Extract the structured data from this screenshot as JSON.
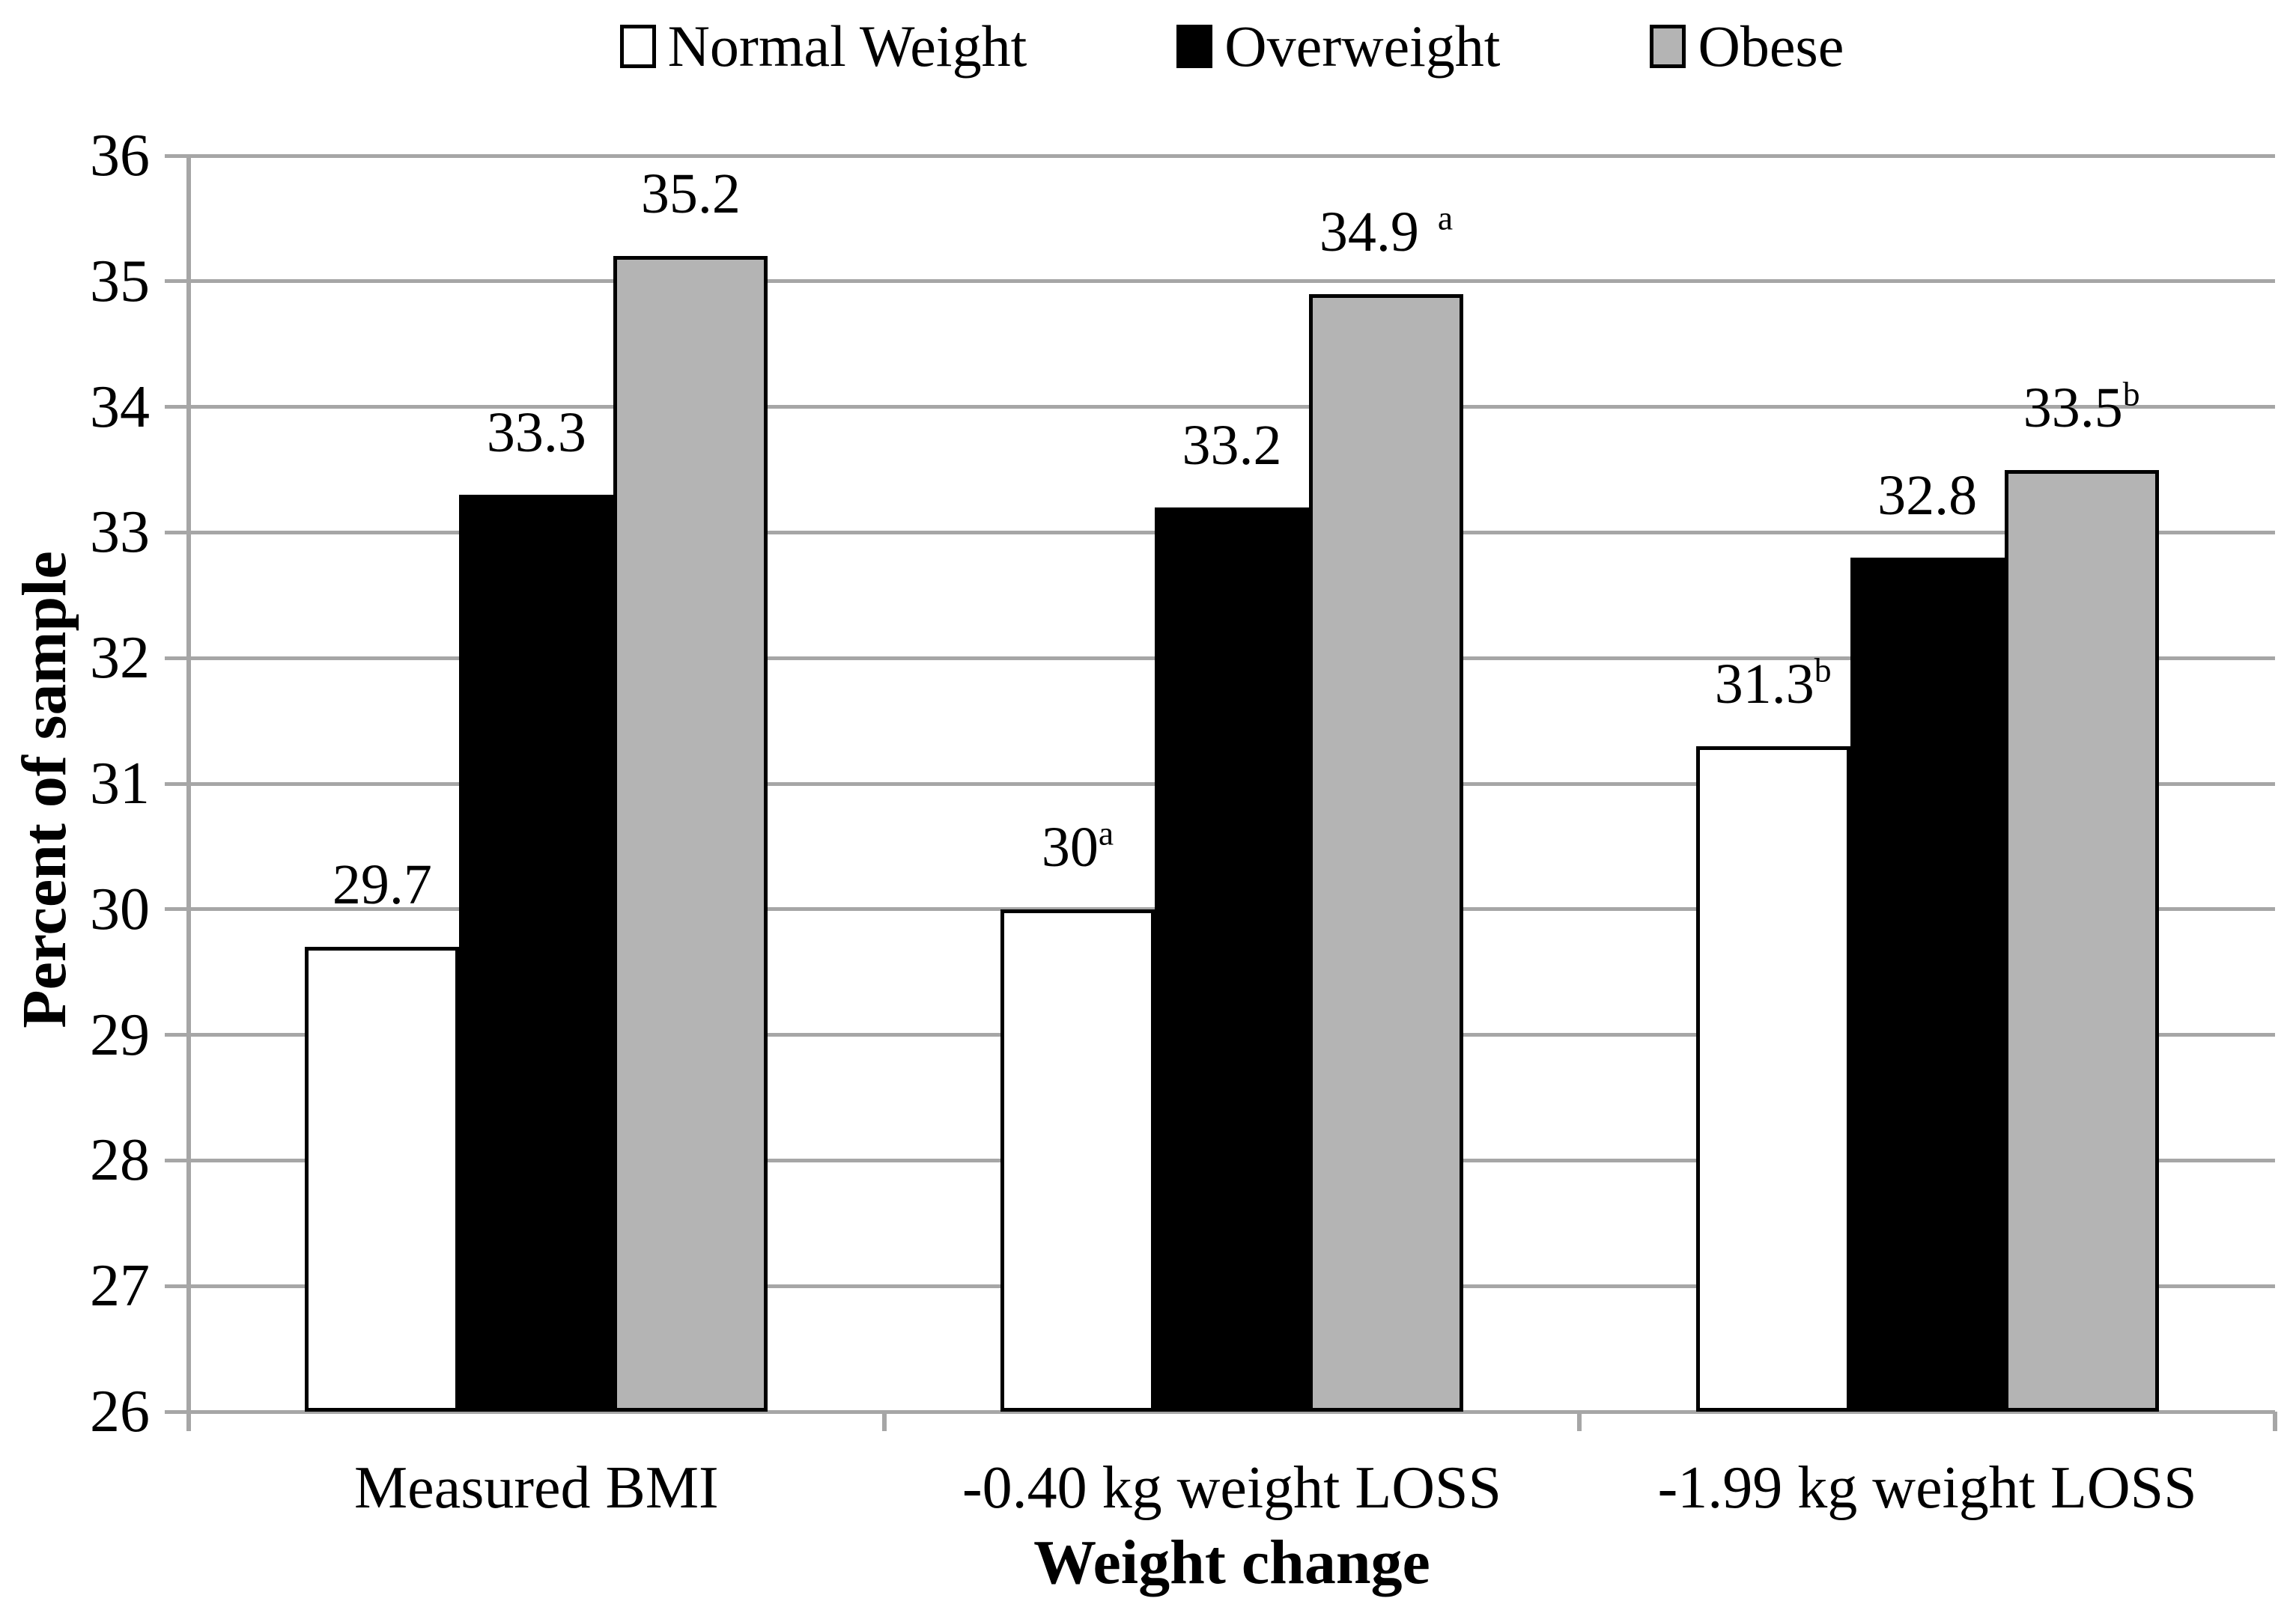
{
  "chart_data": {
    "type": "bar",
    "title": "",
    "xlabel": "Weight change",
    "ylabel": "Percent of sample",
    "ylim": [
      26,
      36
    ],
    "ytick_step": 1,
    "grid": true,
    "legend_position": "top",
    "categories": [
      "Measured BMI",
      "-0.40 kg weight LOSS",
      "-1.99 kg weight LOSS"
    ],
    "series": [
      {
        "name": "Normal Weight",
        "fill_color": "#ffffff",
        "border_color": "#000000",
        "values": [
          29.7,
          30,
          31.3
        ],
        "labels": [
          {
            "text": "29.7",
            "sup": "",
            "sup_gap": false
          },
          {
            "text": "30",
            "sup": "a",
            "sup_gap": false
          },
          {
            "text": "31.3",
            "sup": "b",
            "sup_gap": false
          }
        ]
      },
      {
        "name": "Overweight",
        "fill_color": "#000000",
        "border_color": "#000000",
        "values": [
          33.3,
          33.2,
          32.8
        ],
        "labels": [
          {
            "text": "33.3",
            "sup": "",
            "sup_gap": false
          },
          {
            "text": "33.2",
            "sup": "",
            "sup_gap": false
          },
          {
            "text": "32.8",
            "sup": "",
            "sup_gap": false
          }
        ]
      },
      {
        "name": "Obese",
        "fill_color": "#b4b4b4",
        "border_color": "#000000",
        "values": [
          35.2,
          34.9,
          33.5
        ],
        "labels": [
          {
            "text": "35.2",
            "sup": "",
            "sup_gap": false
          },
          {
            "text": "34.9",
            "sup": "a",
            "sup_gap": true
          },
          {
            "text": "33.5",
            "sup": "b",
            "sup_gap": false
          }
        ]
      }
    ],
    "colors": {
      "gridline": "#a6a6a6",
      "axis": "#a6a6a6",
      "text": "#000000",
      "background": "#ffffff"
    }
  }
}
